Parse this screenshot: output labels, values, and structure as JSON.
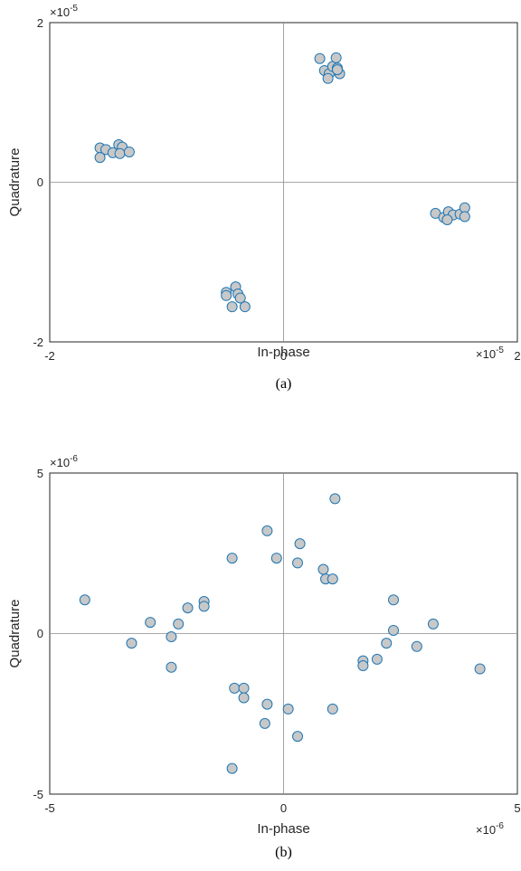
{
  "chart_data": [
    {
      "type": "scatter",
      "caption": "(a)",
      "xlabel": "In-phase",
      "ylabel": "Quadrature",
      "x_exponent": "×10",
      "x_exponent_power": "-5",
      "y_exponent": "×10",
      "y_exponent_power": "-5",
      "xlim": [
        -2,
        2
      ],
      "ylim": [
        -2,
        2
      ],
      "xticks": [
        "-2",
        "0",
        "2"
      ],
      "yticks": [
        "-2",
        "0",
        "2"
      ],
      "marker_fill": "#c8c8c8",
      "marker_edge": "#1f77b4",
      "points": [
        [
          -1.57,
          0.43
        ],
        [
          -1.52,
          0.41
        ],
        [
          -1.46,
          0.37
        ],
        [
          -1.41,
          0.47
        ],
        [
          -1.38,
          0.44
        ],
        [
          -1.4,
          0.36
        ],
        [
          -1.32,
          0.38
        ],
        [
          -1.57,
          0.31
        ],
        [
          0.31,
          1.55
        ],
        [
          0.35,
          1.4
        ],
        [
          0.39,
          1.36
        ],
        [
          0.42,
          1.45
        ],
        [
          0.45,
          1.56
        ],
        [
          0.46,
          1.43
        ],
        [
          0.48,
          1.36
        ],
        [
          0.46,
          1.41
        ],
        [
          0.38,
          1.3
        ],
        [
          1.3,
          -0.39
        ],
        [
          1.37,
          -0.44
        ],
        [
          1.41,
          -0.37
        ],
        [
          1.45,
          -0.41
        ],
        [
          1.51,
          -0.4
        ],
        [
          1.55,
          -0.32
        ],
        [
          1.55,
          -0.43
        ],
        [
          1.4,
          -0.47
        ],
        [
          -0.49,
          -1.38
        ],
        [
          -0.49,
          -1.42
        ],
        [
          -0.41,
          -1.31
        ],
        [
          -0.39,
          -1.4
        ],
        [
          -0.37,
          -1.45
        ],
        [
          -0.44,
          -1.56
        ],
        [
          -0.33,
          -1.56
        ]
      ]
    },
    {
      "type": "scatter",
      "caption": "(b)",
      "xlabel": "In-phase",
      "ylabel": "Quadrature",
      "x_exponent": "×10",
      "x_exponent_power": "-6",
      "y_exponent": "×10",
      "y_exponent_power": "-6",
      "xlim": [
        -5,
        5
      ],
      "ylim": [
        -5,
        5
      ],
      "xticks": [
        "-5",
        "0",
        "5"
      ],
      "yticks": [
        "-5",
        "0",
        "5"
      ],
      "marker_fill": "#c8c8c8",
      "marker_edge": "#1f77b4",
      "points": [
        [
          1.1,
          4.2
        ],
        [
          -0.35,
          3.2
        ],
        [
          0.35,
          2.8
        ],
        [
          -1.1,
          2.35
        ],
        [
          -0.15,
          2.35
        ],
        [
          0.3,
          2.2
        ],
        [
          0.85,
          2.0
        ],
        [
          0.9,
          1.7
        ],
        [
          1.05,
          1.7
        ],
        [
          -4.25,
          1.05
        ],
        [
          -1.7,
          1.0
        ],
        [
          -1.7,
          0.85
        ],
        [
          -2.05,
          0.8
        ],
        [
          -2.85,
          0.35
        ],
        [
          -2.25,
          0.3
        ],
        [
          -3.25,
          -0.3
        ],
        [
          -2.4,
          -0.1
        ],
        [
          -2.4,
          -1.05
        ],
        [
          2.35,
          1.05
        ],
        [
          2.35,
          0.1
        ],
        [
          3.2,
          0.3
        ],
        [
          2.2,
          -0.3
        ],
        [
          2.85,
          -0.4
        ],
        [
          1.7,
          -0.85
        ],
        [
          1.7,
          -1.0
        ],
        [
          2.0,
          -0.8
        ],
        [
          4.2,
          -1.1
        ],
        [
          -1.05,
          -1.7
        ],
        [
          -0.85,
          -1.7
        ],
        [
          -0.85,
          -2.0
        ],
        [
          -0.35,
          -2.2
        ],
        [
          0.1,
          -2.35
        ],
        [
          1.05,
          -2.35
        ],
        [
          -0.4,
          -2.8
        ],
        [
          0.3,
          -3.2
        ],
        [
          -1.1,
          -4.2
        ]
      ]
    }
  ]
}
